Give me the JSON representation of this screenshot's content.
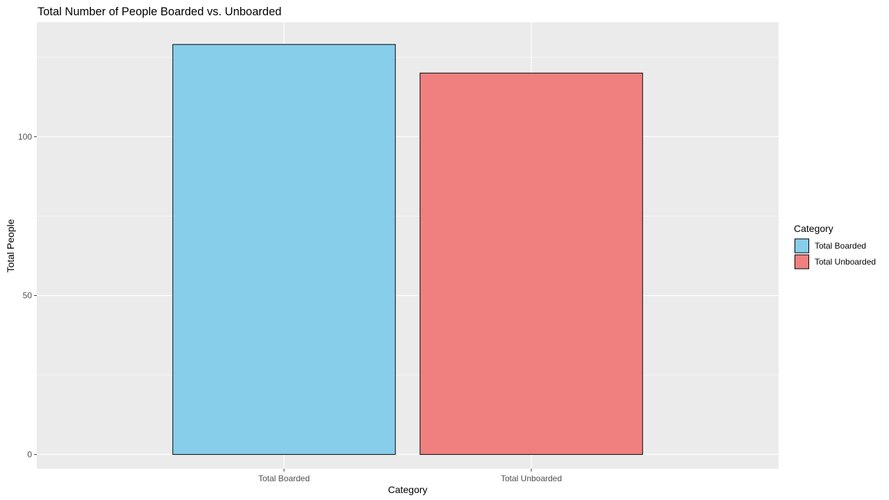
{
  "chart_data": {
    "type": "bar",
    "title": "Total Number of People Boarded vs. Unboarded",
    "xlabel": "Category",
    "ylabel": "Total People",
    "categories": [
      "Total Boarded",
      "Total Unboarded"
    ],
    "values": [
      129,
      120
    ],
    "colors": [
      "#87CEEB",
      "#F08080"
    ],
    "ylim": [
      -4.5,
      136
    ],
    "yticks": [
      0,
      50,
      100
    ],
    "ytick_labels": [
      "0",
      "50",
      "100"
    ],
    "grid": true,
    "panel_background": "#EBEBEB",
    "legend": {
      "title": "Category",
      "placement": "right",
      "entries": [
        "Total Boarded",
        "Total Unboarded"
      ]
    }
  }
}
